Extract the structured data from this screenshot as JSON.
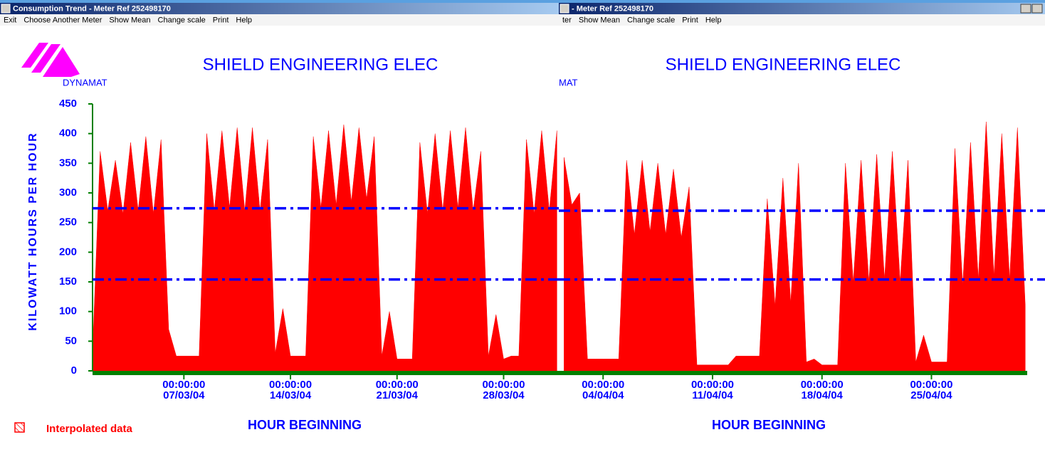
{
  "windows": [
    {
      "title": "Consumption Trend - Meter Ref 252498170",
      "menu": [
        "Exit",
        "Choose Another Meter",
        "Show Mean",
        "Change scale",
        "Print",
        "Help"
      ],
      "logo": "DYNAMAT",
      "legend": "Interpolated data",
      "chart_data": {
        "type": "area",
        "title": "SHIELD ENGINEERING ELEC",
        "ylabel": "KILOWATT HOURS PER HOUR",
        "xlabel": "HOUR BEGINNING",
        "color": "#ff0000",
        "mean_color": "#0000ff",
        "mean_lines": [
          274,
          154
        ],
        "ylim": [
          0,
          450
        ],
        "yticks": [
          0,
          50,
          100,
          150,
          200,
          250,
          300,
          350,
          400,
          450
        ],
        "xlim": [
          "2004-03-01 00:00",
          "2004-03-31 15:00"
        ],
        "xticks": [
          {
            "value": "2004-03-07 00:00",
            "label": [
              "00:00:00",
              "07/03/04"
            ]
          },
          {
            "value": "2004-03-14 00:00",
            "label": [
              "00:00:00",
              "14/03/04"
            ]
          },
          {
            "value": "2004-03-21 00:00",
            "label": [
              "00:00:00",
              "21/03/04"
            ]
          },
          {
            "value": "2004-03-28 00:00",
            "label": [
              "00:00:00",
              "28/03/04"
            ]
          }
        ],
        "x": [
          "2004-03-01 00:00",
          "2004-03-01 12:00",
          "2004-03-02 00:00",
          "2004-03-02 12:00",
          "2004-03-03 00:00",
          "2004-03-03 12:00",
          "2004-03-04 00:00",
          "2004-03-04 12:00",
          "2004-03-05 00:00",
          "2004-03-05 12:00",
          "2004-03-06 00:00",
          "2004-03-06 12:00",
          "2004-03-07 00:00",
          "2004-03-07 12:00",
          "2004-03-08 00:00",
          "2004-03-08 12:00",
          "2004-03-09 00:00",
          "2004-03-09 12:00",
          "2004-03-10 00:00",
          "2004-03-10 12:00",
          "2004-03-11 00:00",
          "2004-03-11 12:00",
          "2004-03-12 00:00",
          "2004-03-12 12:00",
          "2004-03-13 00:00",
          "2004-03-13 12:00",
          "2004-03-14 00:00",
          "2004-03-14 12:00",
          "2004-03-15 00:00",
          "2004-03-15 12:00",
          "2004-03-16 00:00",
          "2004-03-16 12:00",
          "2004-03-17 00:00",
          "2004-03-17 12:00",
          "2004-03-18 00:00",
          "2004-03-18 12:00",
          "2004-03-19 00:00",
          "2004-03-19 12:00",
          "2004-03-20 00:00",
          "2004-03-20 12:00",
          "2004-03-21 00:00",
          "2004-03-21 12:00",
          "2004-03-22 00:00",
          "2004-03-22 12:00",
          "2004-03-23 00:00",
          "2004-03-23 12:00",
          "2004-03-24 00:00",
          "2004-03-24 12:00",
          "2004-03-25 00:00",
          "2004-03-25 12:00",
          "2004-03-26 00:00",
          "2004-03-26 12:00",
          "2004-03-27 00:00",
          "2004-03-27 12:00",
          "2004-03-28 00:00",
          "2004-03-28 12:00",
          "2004-03-29 00:00",
          "2004-03-29 12:00",
          "2004-03-30 00:00",
          "2004-03-30 12:00",
          "2004-03-31 00:00",
          "2004-03-31 12:00"
        ],
        "values": [
          30,
          370,
          270,
          355,
          265,
          385,
          270,
          395,
          265,
          390,
          70,
          25,
          25,
          25,
          25,
          400,
          270,
          405,
          275,
          410,
          270,
          410,
          270,
          390,
          30,
          105,
          25,
          25,
          25,
          395,
          275,
          405,
          280,
          415,
          285,
          410,
          290,
          395,
          25,
          100,
          20,
          20,
          20,
          385,
          265,
          400,
          270,
          405,
          275,
          410,
          270,
          370,
          25,
          95,
          20,
          25,
          25,
          390,
          265,
          405,
          270,
          405
        ]
      }
    },
    {
      "title": "- Meter Ref 252498170",
      "menu": [
        "ter",
        "Show Mean",
        "Change scale",
        "Print",
        "Help"
      ],
      "logo": "MAT",
      "chart_data": {
        "type": "area",
        "title": "SHIELD ENGINEERING ELEC",
        "xlabel": "HOUR BEGINNING",
        "color": "#ff0000",
        "mean_color": "#0000ff",
        "mean_lines": [
          270,
          154
        ],
        "ylim": [
          0,
          450
        ],
        "xlim": [
          "2004-04-01 04:00",
          "2004-05-01 03:00"
        ],
        "xticks": [
          {
            "value": "2004-04-04 00:00",
            "label": [
              "00:00:00",
              "04/04/04"
            ]
          },
          {
            "value": "2004-04-11 00:00",
            "label": [
              "00:00:00",
              "11/04/04"
            ]
          },
          {
            "value": "2004-04-18 00:00",
            "label": [
              "00:00:00",
              "18/04/04"
            ]
          },
          {
            "value": "2004-04-25 00:00",
            "label": [
              "00:00:00",
              "25/04/04"
            ]
          }
        ],
        "x": [
          "2004-04-01 12:00",
          "2004-04-02 00:00",
          "2004-04-02 12:00",
          "2004-04-03 00:00",
          "2004-04-03 12:00",
          "2004-04-04 00:00",
          "2004-04-04 12:00",
          "2004-04-05 00:00",
          "2004-04-05 12:00",
          "2004-04-06 00:00",
          "2004-04-06 12:00",
          "2004-04-07 00:00",
          "2004-04-07 12:00",
          "2004-04-08 00:00",
          "2004-04-08 12:00",
          "2004-04-09 00:00",
          "2004-04-09 12:00",
          "2004-04-10 00:00",
          "2004-04-10 12:00",
          "2004-04-11 00:00",
          "2004-04-11 12:00",
          "2004-04-12 00:00",
          "2004-04-12 12:00",
          "2004-04-13 00:00",
          "2004-04-13 12:00",
          "2004-04-14 00:00",
          "2004-04-14 12:00",
          "2004-04-15 00:00",
          "2004-04-15 12:00",
          "2004-04-16 00:00",
          "2004-04-16 12:00",
          "2004-04-17 00:00",
          "2004-04-17 12:00",
          "2004-04-18 00:00",
          "2004-04-18 12:00",
          "2004-04-19 00:00",
          "2004-04-19 12:00",
          "2004-04-20 00:00",
          "2004-04-20 12:00",
          "2004-04-21 00:00",
          "2004-04-21 12:00",
          "2004-04-22 00:00",
          "2004-04-22 12:00",
          "2004-04-23 00:00",
          "2004-04-23 12:00",
          "2004-04-24 00:00",
          "2004-04-24 12:00",
          "2004-04-25 00:00",
          "2004-04-25 12:00",
          "2004-04-26 00:00",
          "2004-04-26 12:00",
          "2004-04-27 00:00",
          "2004-04-27 12:00",
          "2004-04-28 00:00",
          "2004-04-28 12:00",
          "2004-04-29 00:00",
          "2004-04-29 12:00",
          "2004-04-30 00:00",
          "2004-04-30 12:00",
          "2004-05-01 00:00"
        ],
        "values": [
          360,
          280,
          300,
          20,
          20,
          20,
          20,
          20,
          355,
          230,
          355,
          235,
          350,
          230,
          340,
          225,
          310,
          10,
          10,
          10,
          10,
          10,
          25,
          25,
          25,
          25,
          290,
          110,
          325,
          115,
          350,
          15,
          20,
          10,
          10,
          10,
          350,
          150,
          355,
          150,
          365,
          155,
          370,
          150,
          355,
          15,
          60,
          15,
          15,
          15,
          375,
          145,
          385,
          155,
          420,
          160,
          400,
          155,
          410,
          110
        ]
      }
    }
  ]
}
